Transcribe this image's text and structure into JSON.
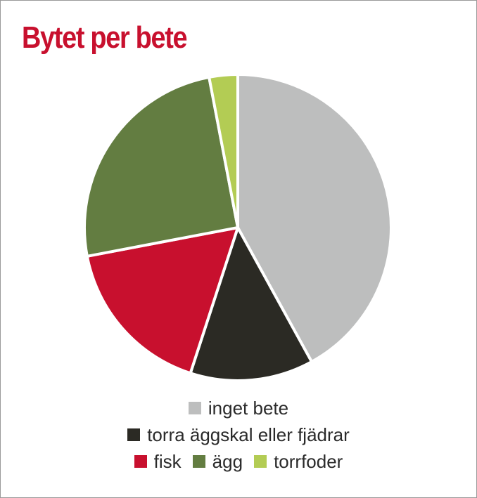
{
  "chart_data": {
    "type": "pie",
    "title": "Bytet per bete",
    "categories": [
      "inget bete",
      "torra äggskal eller fjädrar",
      "fisk",
      "ägg",
      "torrfoder"
    ],
    "values": [
      42,
      13,
      17,
      25,
      3
    ],
    "colors": [
      "#bdbebe",
      "#2b2a24",
      "#c8102e",
      "#637d41",
      "#b3cc54"
    ],
    "start_angle_deg": 0,
    "direction": "clockwise",
    "legend_position": "bottom",
    "title_color": "#c8102e"
  }
}
